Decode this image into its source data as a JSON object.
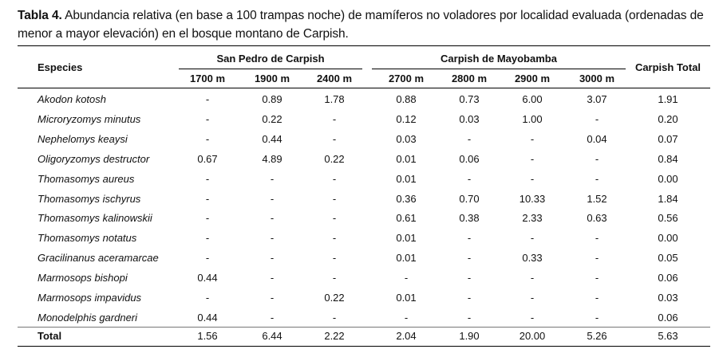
{
  "caption": {
    "label": "Tabla 4.",
    "text": " Abundancia relativa (en base a 100 trampas noche) de mamíferos no voladores por localidad evaluada (ordenadas de menor a mayor elevación) en el bosque montano de Carpish."
  },
  "header": {
    "species": "Especies",
    "group1": "San Pedro de Carpish",
    "group2": "Carpish de Mayobamba",
    "total": "Carpish Total",
    "elevations": [
      "1700 m",
      "1900 m",
      "2400 m",
      "2700 m",
      "2800 m",
      "2900 m",
      "3000 m"
    ]
  },
  "rows": [
    {
      "species": "Akodon kotosh",
      "values": [
        "-",
        "0.89",
        "1.78",
        "0.88",
        "0.73",
        "6.00",
        "3.07",
        "1.91"
      ]
    },
    {
      "species": "Microryzomys minutus",
      "values": [
        "-",
        "0.22",
        "-",
        "0.12",
        "0.03",
        "1.00",
        "-",
        "0.20"
      ]
    },
    {
      "species": "Nephelomys keaysi",
      "values": [
        "-",
        "0.44",
        "-",
        "0.03",
        "-",
        "-",
        "0.04",
        "0.07"
      ]
    },
    {
      "species": "Oligoryzomys destructor",
      "values": [
        "0.67",
        "4.89",
        "0.22",
        "0.01",
        "0.06",
        "-",
        "-",
        "0.84"
      ]
    },
    {
      "species": "Thomasomys aureus",
      "values": [
        "-",
        "-",
        "-",
        "0.01",
        "-",
        "-",
        "-",
        "0.00"
      ]
    },
    {
      "species": "Thomasomys ischyrus",
      "values": [
        "-",
        "-",
        "-",
        "0.36",
        "0.70",
        "10.33",
        "1.52",
        "1.84"
      ]
    },
    {
      "species": "Thomasomys kalinowskii",
      "values": [
        "-",
        "-",
        "-",
        "0.61",
        "0.38",
        "2.33",
        "0.63",
        "0.56"
      ]
    },
    {
      "species": "Thomasomys notatus",
      "values": [
        "-",
        "-",
        "-",
        "0.01",
        "-",
        "-",
        "-",
        "0.00"
      ]
    },
    {
      "species": "Gracilinanus aceramarcae",
      "values": [
        "-",
        "-",
        "-",
        "0.01",
        "-",
        "0.33",
        "-",
        "0.05"
      ]
    },
    {
      "species": "Marmosops bishopi",
      "values": [
        "0.44",
        "-",
        "-",
        "-",
        "-",
        "-",
        "-",
        "0.06"
      ]
    },
    {
      "species": "Marmosops impavidus",
      "values": [
        "-",
        "-",
        "0.22",
        "0.01",
        "-",
        "-",
        "-",
        "0.03"
      ]
    },
    {
      "species": "Monodelphis gardneri",
      "values": [
        "0.44",
        "-",
        "-",
        "-",
        "-",
        "-",
        "-",
        "0.06"
      ]
    }
  ],
  "total": {
    "label": "Total",
    "values": [
      "1.56",
      "6.44",
      "2.22",
      "2.04",
      "1.90",
      "20.00",
      "5.26",
      "5.63"
    ]
  }
}
